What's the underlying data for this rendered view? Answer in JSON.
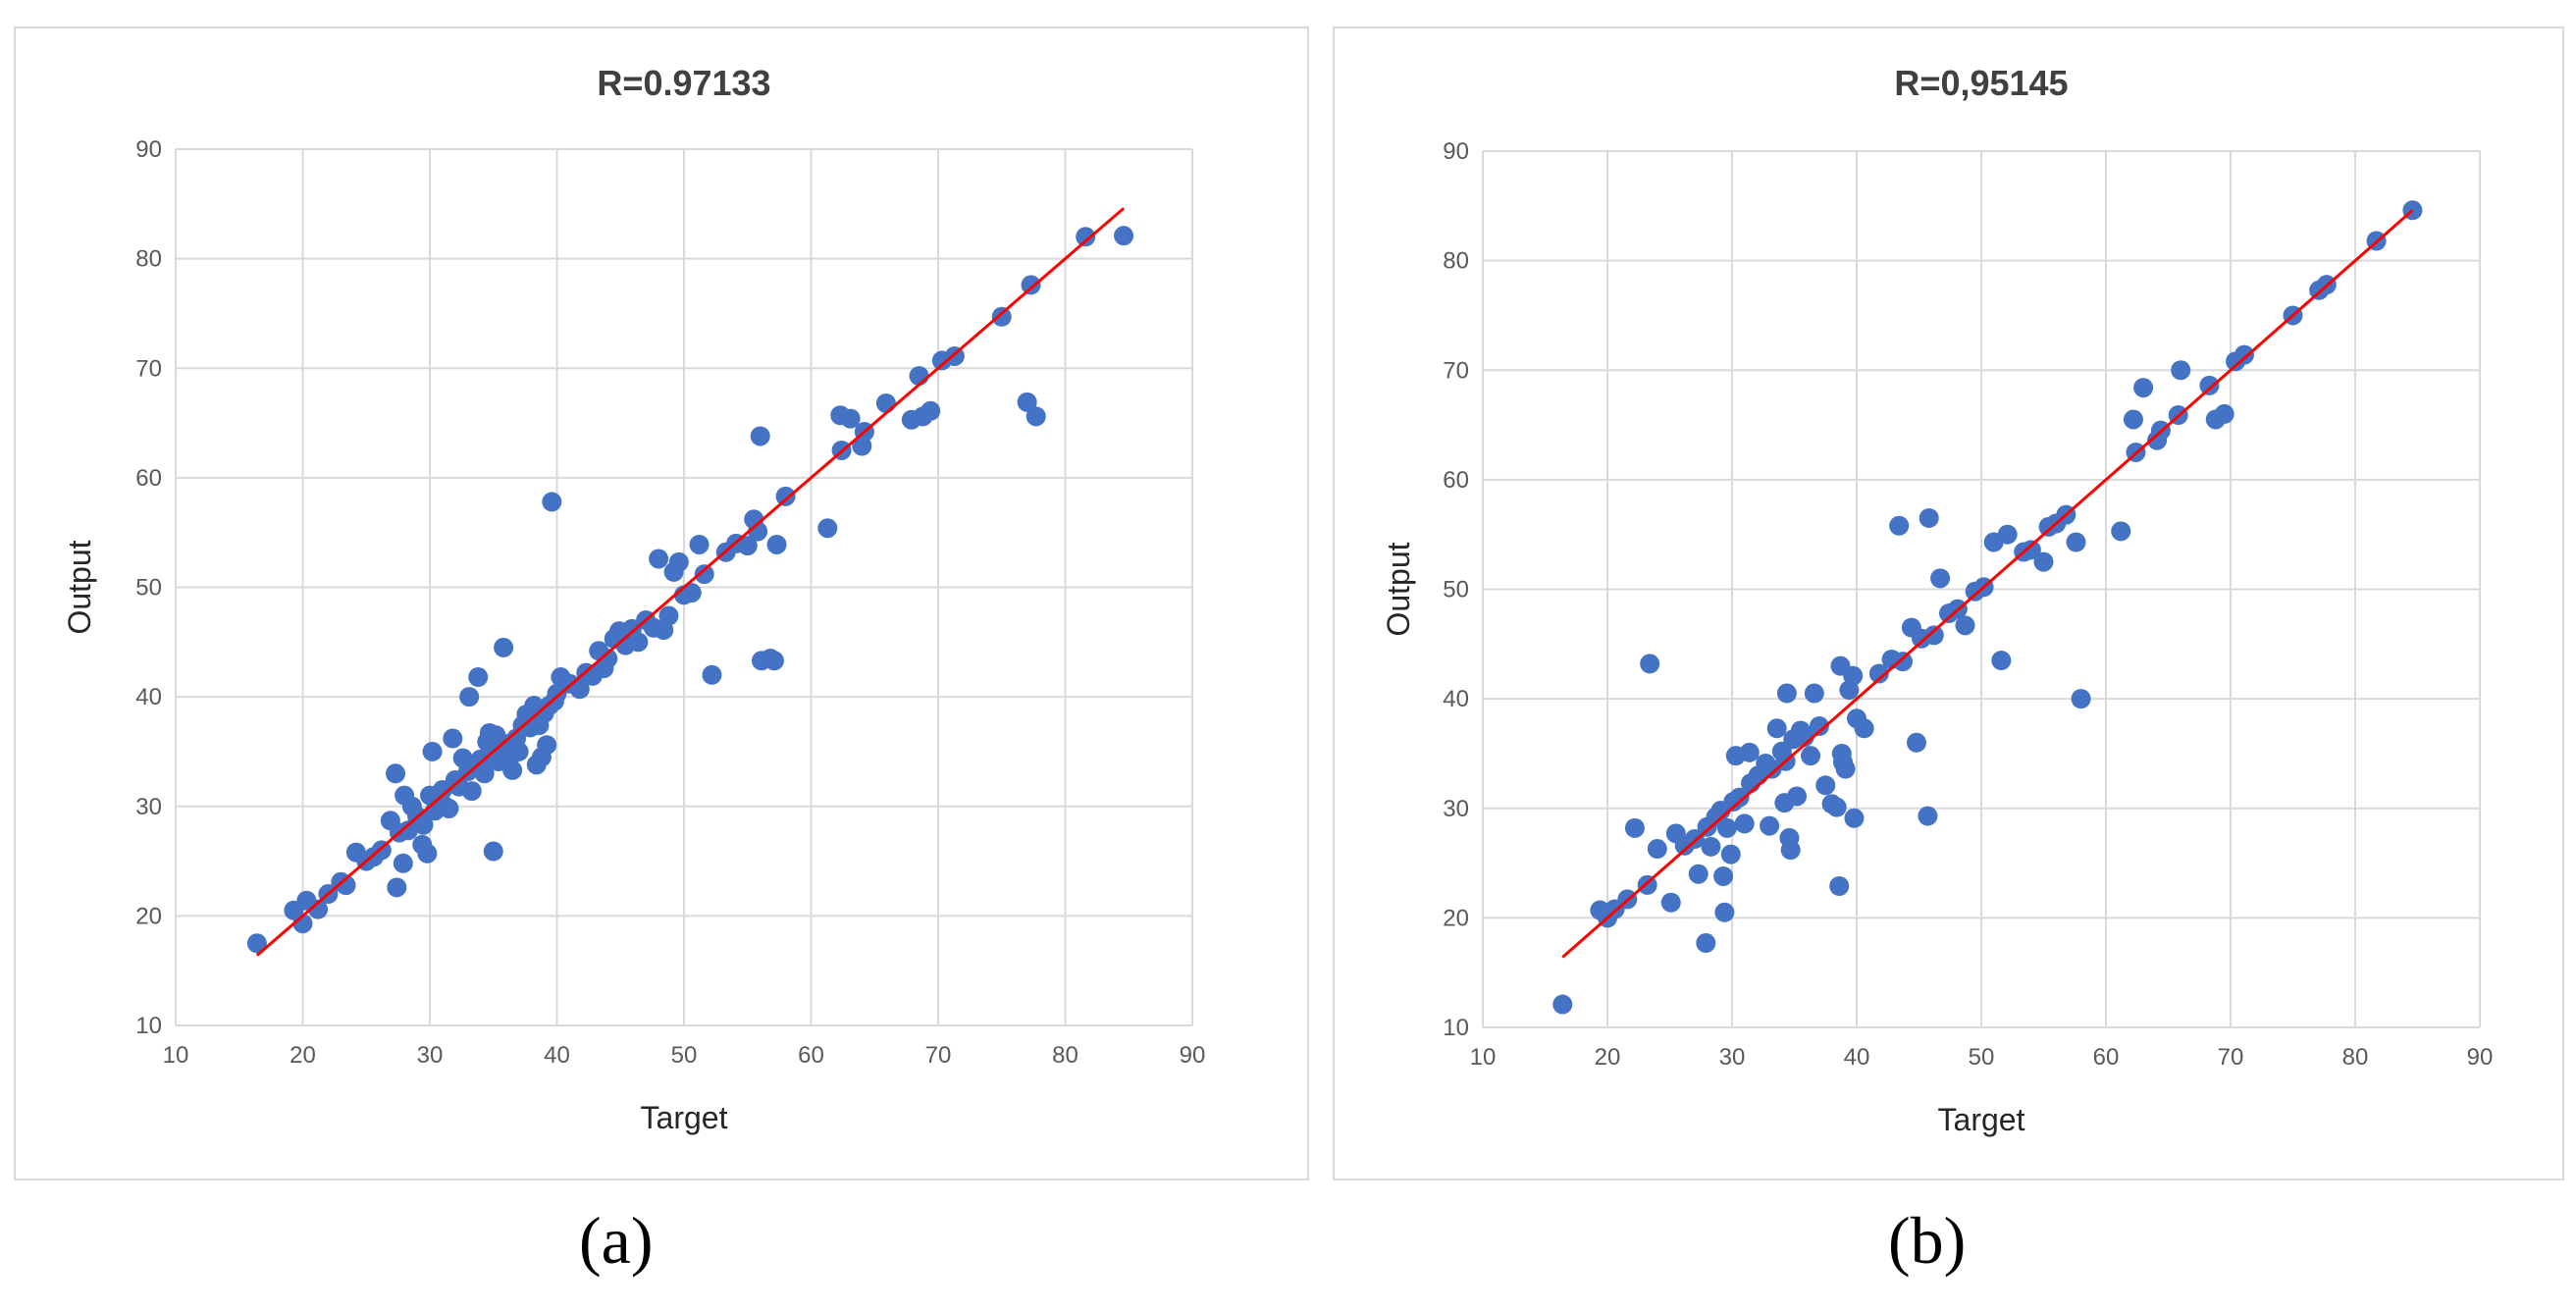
{
  "chart_data": [
    {
      "type": "scatter",
      "title": "R=0.97133",
      "xlabel": "Target",
      "ylabel": "Output",
      "xlim": [
        10,
        90
      ],
      "ylim": [
        10,
        90
      ],
      "xticks": [
        "10",
        "20",
        "30",
        "40",
        "50",
        "60",
        "70",
        "80",
        "90"
      ],
      "yticks": [
        "10",
        "20",
        "30",
        "40",
        "50",
        "60",
        "70",
        "80",
        "90"
      ],
      "grid": true,
      "point_color": "#4472c4",
      "fit_color": "#ff0000",
      "fit_line": {
        "x": [
          16.4,
          84.6
        ],
        "y": [
          16.4,
          84.6
        ]
      },
      "panel_label": "(a)",
      "points": [
        [
          16.4,
          17.5
        ],
        [
          19.3,
          20.5
        ],
        [
          20,
          19.3
        ],
        [
          20.3,
          21.4
        ],
        [
          21.2,
          20.6
        ],
        [
          22,
          22
        ],
        [
          23,
          23.1
        ],
        [
          23.4,
          22.8
        ],
        [
          24.2,
          25.8
        ],
        [
          25,
          25
        ],
        [
          25.6,
          25.4
        ],
        [
          26.2,
          26
        ],
        [
          26.9,
          28.7
        ],
        [
          27.3,
          33
        ],
        [
          27.4,
          22.6
        ],
        [
          27.6,
          27.6
        ],
        [
          27.9,
          24.8
        ],
        [
          28,
          31
        ],
        [
          28.3,
          27.8
        ],
        [
          28.6,
          30
        ],
        [
          29,
          29.1
        ],
        [
          29.4,
          26.5
        ],
        [
          29.5,
          28.3
        ],
        [
          29.8,
          25.7
        ],
        [
          30,
          31
        ],
        [
          30.2,
          35
        ],
        [
          30.4,
          29.6
        ],
        [
          30.7,
          30.2
        ],
        [
          31,
          31.5
        ],
        [
          31.2,
          30
        ],
        [
          31.5,
          29.8
        ],
        [
          31.8,
          36.2
        ],
        [
          32,
          32.4
        ],
        [
          32.3,
          31.8
        ],
        [
          32.6,
          34.4
        ],
        [
          33,
          33.2
        ],
        [
          33.1,
          40
        ],
        [
          33.3,
          31.4
        ],
        [
          33.6,
          33.8
        ],
        [
          33.8,
          41.8
        ],
        [
          34,
          34.3
        ],
        [
          34.3,
          33
        ],
        [
          34.5,
          35.9
        ],
        [
          34.7,
          36.7
        ],
        [
          34.9,
          35.2
        ],
        [
          35,
          25.9
        ],
        [
          35.2,
          36.5
        ],
        [
          35.4,
          34.1
        ],
        [
          35.6,
          34.8
        ],
        [
          35.8,
          44.5
        ],
        [
          36,
          35.7
        ],
        [
          36.2,
          34
        ],
        [
          36.5,
          33.3
        ],
        [
          36.8,
          36.2
        ],
        [
          37,
          35
        ],
        [
          37.3,
          37.4
        ],
        [
          37.6,
          38.4
        ],
        [
          37.9,
          37.2
        ],
        [
          38.2,
          39.2
        ],
        [
          38.4,
          33.8
        ],
        [
          38.6,
          37.4
        ],
        [
          38.8,
          34.5
        ],
        [
          39,
          38.5
        ],
        [
          39.2,
          35.6
        ],
        [
          39.4,
          39.2
        ],
        [
          39.6,
          57.8
        ],
        [
          39.8,
          39.6
        ],
        [
          40,
          40.3
        ],
        [
          40.3,
          41.8
        ],
        [
          41,
          41.2
        ],
        [
          41.8,
          40.7
        ],
        [
          42.3,
          42.2
        ],
        [
          42.8,
          41.9
        ],
        [
          43.3,
          44.2
        ],
        [
          43.7,
          42.6
        ],
        [
          44,
          43.5
        ],
        [
          44.5,
          45.3
        ],
        [
          44.9,
          46
        ],
        [
          45.4,
          44.7
        ],
        [
          45.9,
          46.2
        ],
        [
          46.4,
          45
        ],
        [
          47,
          47
        ],
        [
          47.6,
          46.3
        ],
        [
          48,
          52.6
        ],
        [
          48.4,
          46.1
        ],
        [
          48.8,
          47.4
        ],
        [
          49.2,
          51.4
        ],
        [
          49.6,
          52.3
        ],
        [
          50,
          49.3
        ],
        [
          50.6,
          49.5
        ],
        [
          51.2,
          53.9
        ],
        [
          51.6,
          51.2
        ],
        [
          52.2,
          42
        ],
        [
          53.3,
          53.2
        ],
        [
          54.1,
          54
        ],
        [
          55,
          53.8
        ],
        [
          55.5,
          56.2
        ],
        [
          55.8,
          55.1
        ],
        [
          56,
          63.8
        ],
        [
          56.1,
          43.3
        ],
        [
          56.8,
          43.5
        ],
        [
          57.1,
          43.3
        ],
        [
          57.3,
          53.9
        ],
        [
          58,
          58.3
        ],
        [
          61.3,
          55.4
        ],
        [
          62.3,
          65.7
        ],
        [
          62.4,
          62.5
        ],
        [
          63.1,
          65.4
        ],
        [
          64,
          62.9
        ],
        [
          64.2,
          64.2
        ],
        [
          65.9,
          66.8
        ],
        [
          67.9,
          65.3
        ],
        [
          68.5,
          69.3
        ],
        [
          68.8,
          65.6
        ],
        [
          69.4,
          66.1
        ],
        [
          70.3,
          70.7
        ],
        [
          71.3,
          71.1
        ],
        [
          75,
          74.7
        ],
        [
          77,
          66.9
        ],
        [
          77.3,
          77.6
        ],
        [
          77.7,
          65.6
        ],
        [
          81.6,
          82
        ],
        [
          84.6,
          82.1
        ]
      ]
    },
    {
      "type": "scatter",
      "title": "R=0,95145",
      "xlabel": "Target",
      "ylabel": "Output",
      "xlim": [
        10,
        90
      ],
      "ylim": [
        10,
        90
      ],
      "xticks": [
        "10",
        "20",
        "30",
        "40",
        "50",
        "60",
        "70",
        "80",
        "90"
      ],
      "yticks": [
        "10",
        "20",
        "30",
        "40",
        "50",
        "60",
        "70",
        "80",
        "90"
      ],
      "grid": true,
      "point_color": "#4472c4",
      "fit_color": "#ff0000",
      "fit_line": {
        "x": [
          16.4,
          84.6
        ],
        "y": [
          16.4,
          84.6
        ]
      },
      "panel_label": "(b)",
      "points": [
        [
          16.4,
          12.1
        ],
        [
          19.4,
          20.7
        ],
        [
          20,
          20
        ],
        [
          20.6,
          20.8
        ],
        [
          21.6,
          21.7
        ],
        [
          22.2,
          28.2
        ],
        [
          23.2,
          23
        ],
        [
          23.4,
          43.2
        ],
        [
          24,
          26.3
        ],
        [
          25.1,
          21.4
        ],
        [
          25.5,
          27.7
        ],
        [
          26.2,
          26.6
        ],
        [
          27,
          27.2
        ],
        [
          27.3,
          24
        ],
        [
          27.9,
          17.7
        ],
        [
          28,
          28.3
        ],
        [
          28.3,
          26.5
        ],
        [
          28.7,
          29.2
        ],
        [
          29.1,
          29.8
        ],
        [
          29.3,
          23.8
        ],
        [
          29.4,
          20.5
        ],
        [
          29.6,
          28.2
        ],
        [
          29.9,
          25.8
        ],
        [
          30.1,
          30.6
        ],
        [
          30.3,
          34.8
        ],
        [
          30.6,
          31
        ],
        [
          31,
          28.6
        ],
        [
          31.4,
          35.1
        ],
        [
          31.5,
          32.3
        ],
        [
          32.1,
          33
        ],
        [
          32.7,
          34.1
        ],
        [
          33,
          28.4
        ],
        [
          33.2,
          33.6
        ],
        [
          33.6,
          37.3
        ],
        [
          34,
          35.2
        ],
        [
          34.2,
          30.5
        ],
        [
          34.3,
          34.3
        ],
        [
          34.4,
          40.5
        ],
        [
          34.6,
          27.3
        ],
        [
          34.7,
          26.2
        ],
        [
          34.9,
          36.3
        ],
        [
          35.2,
          31.1
        ],
        [
          35.5,
          37.1
        ],
        [
          35.8,
          36.5
        ],
        [
          36.3,
          34.8
        ],
        [
          36.6,
          40.5
        ],
        [
          37,
          37.5
        ],
        [
          37.5,
          32.1
        ],
        [
          38,
          30.4
        ],
        [
          38.4,
          30.1
        ],
        [
          38.6,
          22.9
        ],
        [
          38.7,
          43
        ],
        [
          38.8,
          35
        ],
        [
          38.9,
          34.2
        ],
        [
          39.1,
          33.6
        ],
        [
          39.4,
          40.8
        ],
        [
          39.7,
          42.1
        ],
        [
          39.8,
          29.1
        ],
        [
          40,
          38.2
        ],
        [
          40.6,
          37.3
        ],
        [
          41.8,
          42.3
        ],
        [
          42.8,
          43.6
        ],
        [
          43.4,
          55.8
        ],
        [
          43.7,
          43.4
        ],
        [
          44.4,
          46.5
        ],
        [
          44.8,
          36
        ],
        [
          45.2,
          45.5
        ],
        [
          45.7,
          29.3
        ],
        [
          45.8,
          56.5
        ],
        [
          46.2,
          45.8
        ],
        [
          46.7,
          51
        ],
        [
          47.4,
          47.8
        ],
        [
          48.1,
          48.2
        ],
        [
          48.7,
          46.7
        ],
        [
          49.5,
          49.8
        ],
        [
          50.2,
          50.2
        ],
        [
          51,
          54.3
        ],
        [
          51.6,
          43.5
        ],
        [
          52.1,
          55
        ],
        [
          53.4,
          53.4
        ],
        [
          54,
          53.6
        ],
        [
          55,
          52.5
        ],
        [
          55.4,
          55.7
        ],
        [
          56,
          56
        ],
        [
          56.8,
          56.8
        ],
        [
          57.6,
          54.3
        ],
        [
          58,
          40
        ],
        [
          61.2,
          55.3
        ],
        [
          62.2,
          65.5
        ],
        [
          62.4,
          62.5
        ],
        [
          63,
          68.4
        ],
        [
          64.1,
          63.6
        ],
        [
          64.4,
          64.5
        ],
        [
          65.8,
          65.9
        ],
        [
          66,
          70
        ],
        [
          68.3,
          68.6
        ],
        [
          68.8,
          65.5
        ],
        [
          69.5,
          66
        ],
        [
          70.4,
          70.8
        ],
        [
          71.1,
          71.4
        ],
        [
          75,
          75
        ],
        [
          77.1,
          77.3
        ],
        [
          77.7,
          77.8
        ],
        [
          81.7,
          81.8
        ],
        [
          84.6,
          84.6
        ]
      ]
    }
  ]
}
